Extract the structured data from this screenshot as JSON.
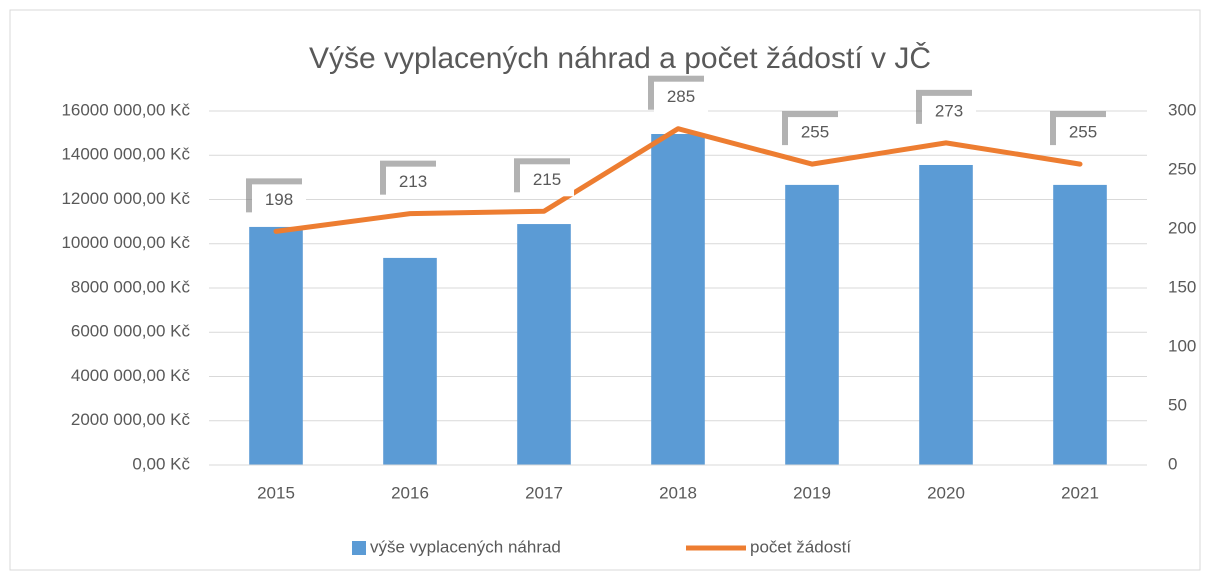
{
  "chart_data": {
    "type": "bar",
    "title": "Výše vyplacených náhrad a počet žádostí v JČ",
    "categories": [
      "2015",
      "2016",
      "2017",
      "2018",
      "2019",
      "2020",
      "2021"
    ],
    "series": [
      {
        "name": "výše vyplacených náhrad",
        "color": "#5b9bd5",
        "type": "bar",
        "values": [
          10760000,
          9360000,
          10890000,
          14960000,
          12660000,
          13560000,
          12660000
        ]
      },
      {
        "name": "počet žádostí",
        "color": "#ed7d31",
        "type": "line",
        "axis": "y2",
        "values": [
          198,
          213,
          215,
          285,
          255,
          273,
          255
        ]
      }
    ],
    "ylim": [
      0,
      16000000
    ],
    "yticks": [
      {
        "value": 0,
        "label": "0,00 Kč"
      },
      {
        "value": 2000000,
        "label": "2000 000,00 Kč"
      },
      {
        "value": 4000000,
        "label": "4000 000,00 Kč"
      },
      {
        "value": 6000000,
        "label": "6000 000,00 Kč"
      },
      {
        "value": 8000000,
        "label": "8000 000,00 Kč"
      },
      {
        "value": 10000000,
        "label": "10000 000,00 Kč"
      },
      {
        "value": 12000000,
        "label": "12000 000,00 Kč"
      },
      {
        "value": 14000000,
        "label": "14000 000,00 Kč"
      },
      {
        "value": 16000000,
        "label": "16000 000,00 Kč"
      }
    ],
    "y2lim": [
      0,
      300
    ],
    "y2ticks": [
      0,
      50,
      100,
      150,
      200,
      250,
      300
    ],
    "grid": true,
    "legend": "bottom"
  }
}
